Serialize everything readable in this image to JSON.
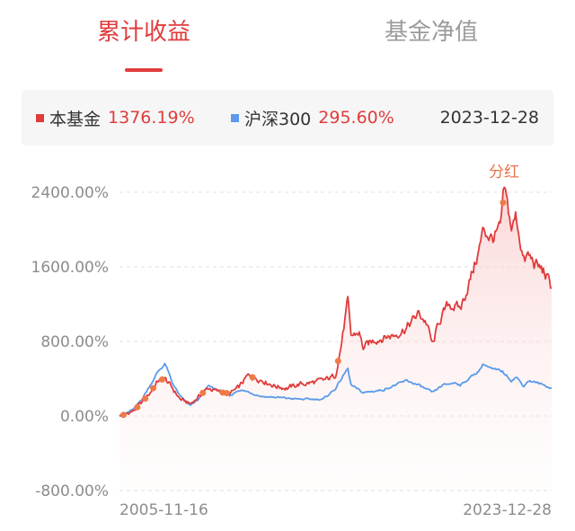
{
  "tabs": [
    {
      "label": "累计收益",
      "active": true
    },
    {
      "label": "基金净值",
      "active": false
    }
  ],
  "legend": {
    "fund": {
      "name": "本基金",
      "value": "1376.19%",
      "color": "#e03c3c"
    },
    "index": {
      "name": "沪深300",
      "value": "295.60%",
      "color": "#5b9bea"
    },
    "date": "2023-12-28"
  },
  "colors": {
    "fund_line": "#e03c3c",
    "index_line": "#5b9bea",
    "dividend_marker": "#f07a47",
    "grid": "#e2e2e2",
    "accent": "#e03c3c"
  },
  "chart_data": {
    "type": "line",
    "x_range": [
      "2005-11-16",
      "2023-12-28"
    ],
    "x_tick_labels": [
      "2005-11-16",
      "2023-12-28"
    ],
    "y_tick_labels": [
      "2400.00%",
      "1600.00%",
      "800.00%",
      "0.00%",
      "-800.00%"
    ],
    "y_ticks": [
      2400,
      1600,
      800,
      0,
      -800
    ],
    "ylim": [
      -800,
      2400
    ],
    "grid": true,
    "annotation": "分红",
    "series": [
      {
        "name": "本基金",
        "color": "#e03c3c",
        "area_fill": true,
        "points": [
          [
            "2005-11-16",
            0
          ],
          [
            "2006-03-01",
            20
          ],
          [
            "2006-07-01",
            60
          ],
          [
            "2006-11-01",
            150
          ],
          [
            "2007-03-01",
            250
          ],
          [
            "2007-07-01",
            380
          ],
          [
            "2007-10-16",
            400
          ],
          [
            "2008-02-01",
            300
          ],
          [
            "2008-06-01",
            180
          ],
          [
            "2008-11-04",
            130
          ],
          [
            "2009-03-01",
            200
          ],
          [
            "2009-08-04",
            300
          ],
          [
            "2010-01-01",
            260
          ],
          [
            "2010-07-01",
            240
          ],
          [
            "2010-11-10",
            300
          ],
          [
            "2011-04-01",
            430
          ],
          [
            "2011-11-01",
            390
          ],
          [
            "2012-06-01",
            320
          ],
          [
            "2012-12-01",
            300
          ],
          [
            "2013-06-01",
            340
          ],
          [
            "2014-01-01",
            360
          ],
          [
            "2014-06-01",
            380
          ],
          [
            "2014-12-01",
            430
          ],
          [
            "2015-03-01",
            750
          ],
          [
            "2015-06-12",
            1230
          ],
          [
            "2015-08-01",
            850
          ],
          [
            "2015-12-01",
            900
          ],
          [
            "2016-02-01",
            730
          ],
          [
            "2016-08-01",
            820
          ],
          [
            "2017-06-01",
            870
          ],
          [
            "2017-12-01",
            950
          ],
          [
            "2018-06-01",
            1100
          ],
          [
            "2018-10-01",
            1000
          ],
          [
            "2019-01-03",
            750
          ],
          [
            "2019-04-01",
            1000
          ],
          [
            "2019-09-01",
            1200
          ],
          [
            "2020-03-01",
            1150
          ],
          [
            "2020-07-01",
            1400
          ],
          [
            "2020-12-01",
            1750
          ],
          [
            "2021-02-18",
            2000
          ],
          [
            "2021-07-01",
            1900
          ],
          [
            "2021-11-01",
            2000
          ],
          [
            "2022-01-04",
            2420
          ],
          [
            "2022-04-26",
            2000
          ],
          [
            "2022-07-01",
            2150
          ],
          [
            "2022-10-31",
            1650
          ],
          [
            "2023-01-01",
            1720
          ],
          [
            "2023-05-01",
            1620
          ],
          [
            "2023-09-01",
            1550
          ],
          [
            "2023-12-28",
            1376.19
          ]
        ]
      },
      {
        "name": "沪深300",
        "color": "#5b9bea",
        "area_fill": false,
        "points": [
          [
            "2005-11-16",
            0
          ],
          [
            "2006-03-01",
            30
          ],
          [
            "2006-07-01",
            80
          ],
          [
            "2006-11-01",
            190
          ],
          [
            "2007-03-01",
            330
          ],
          [
            "2007-07-01",
            480
          ],
          [
            "2007-10-16",
            560
          ],
          [
            "2008-02-01",
            360
          ],
          [
            "2008-06-01",
            210
          ],
          [
            "2008-11-04",
            110
          ],
          [
            "2009-03-01",
            170
          ],
          [
            "2009-08-04",
            320
          ],
          [
            "2010-01-01",
            280
          ],
          [
            "2010-07-01",
            210
          ],
          [
            "2010-11-10",
            280
          ],
          [
            "2011-04-01",
            260
          ],
          [
            "2011-11-01",
            210
          ],
          [
            "2012-06-01",
            200
          ],
          [
            "2012-12-01",
            190
          ],
          [
            "2013-06-01",
            180
          ],
          [
            "2014-01-01",
            180
          ],
          [
            "2014-06-01",
            180
          ],
          [
            "2014-12-01",
            290
          ],
          [
            "2015-06-12",
            510
          ],
          [
            "2015-08-01",
            330
          ],
          [
            "2016-02-01",
            250
          ],
          [
            "2016-12-01",
            280
          ],
          [
            "2017-12-01",
            380
          ],
          [
            "2018-06-01",
            330
          ],
          [
            "2019-01-03",
            250
          ],
          [
            "2019-06-01",
            330
          ],
          [
            "2020-01-01",
            360
          ],
          [
            "2020-03-01",
            330
          ],
          [
            "2020-12-01",
            480
          ],
          [
            "2021-02-18",
            560
          ],
          [
            "2021-07-01",
            500
          ],
          [
            "2021-12-01",
            480
          ],
          [
            "2022-04-26",
            380
          ],
          [
            "2022-07-01",
            420
          ],
          [
            "2022-10-31",
            320
          ],
          [
            "2023-01-01",
            380
          ],
          [
            "2023-05-01",
            360
          ],
          [
            "2023-09-01",
            330
          ],
          [
            "2023-12-28",
            295.6
          ]
        ]
      }
    ],
    "dividend_dates": [
      "2006-01-16",
      "2006-08-16",
      "2006-12-15",
      "2007-04-16",
      "2007-09-01",
      "2009-05-15",
      "2010-03-15",
      "2010-05-15",
      "2011-06-15",
      "2015-01-15",
      "2021-12-15"
    ]
  }
}
